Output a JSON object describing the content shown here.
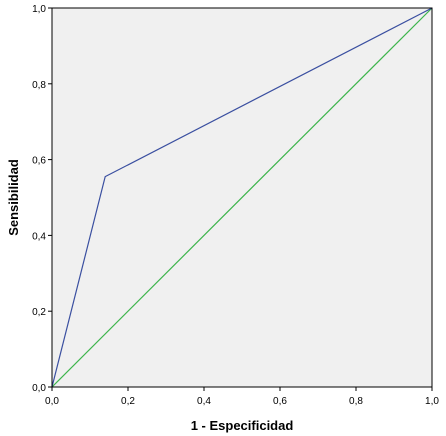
{
  "chart_data": {
    "type": "line",
    "title": "",
    "xlabel": "1 - Especificidad",
    "ylabel": "Sensibilidad",
    "xlim": [
      0,
      1
    ],
    "ylim": [
      0,
      1
    ],
    "grid": false,
    "x_ticks": [
      "0,0",
      "0,2",
      "0,4",
      "0,6",
      "0,8",
      "1,0"
    ],
    "y_ticks": [
      "0,0",
      "0,2",
      "0,4",
      "0,6",
      "0,8",
      "1,0"
    ],
    "tick_values": [
      0,
      0.2,
      0.4,
      0.6,
      0.8,
      1.0
    ],
    "series": [
      {
        "x": [
          0,
          0.14,
          1.0
        ],
        "y": [
          0,
          0.555,
          1.0
        ],
        "color": "#3a4fa0"
      },
      {
        "x": [
          0,
          1.0
        ],
        "y": [
          0,
          1.0
        ],
        "color": "#3cb44b"
      }
    ],
    "colors": {
      "plot_background": "#f0f0f0",
      "frame": "#000000"
    }
  }
}
